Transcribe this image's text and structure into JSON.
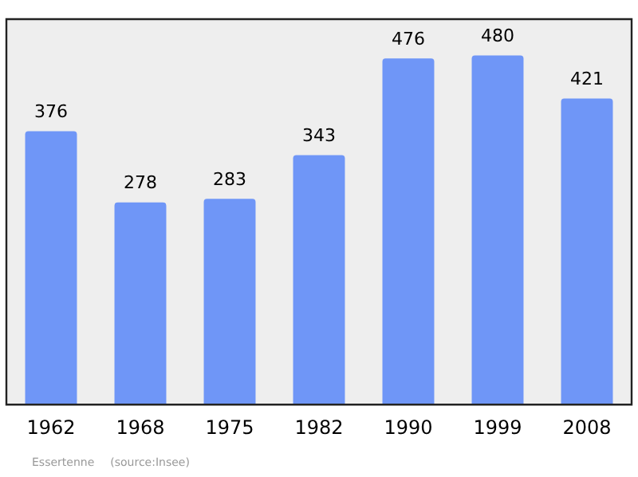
{
  "chart_data": {
    "type": "bar",
    "categories": [
      "1962",
      "1968",
      "1975",
      "1982",
      "1990",
      "1999",
      "2008"
    ],
    "values": [
      376,
      278,
      283,
      343,
      476,
      480,
      421
    ],
    "color": "#6f96f7",
    "ylim": [
      0,
      530
    ],
    "data_labels": true,
    "legend": false,
    "tick_labels": "x",
    "annotations": [
      "Essertenne",
      "(source:Insee)"
    ]
  }
}
